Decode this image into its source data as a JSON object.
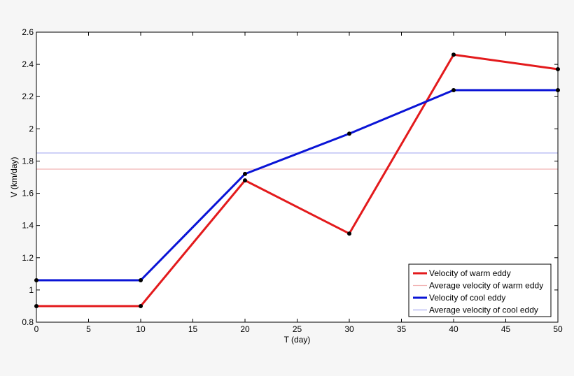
{
  "chart_data": {
    "type": "line",
    "xlabel": "T (day)",
    "ylabel": "V (km/day)",
    "xlim": [
      0,
      50
    ],
    "ylim": [
      0.8,
      2.6
    ],
    "xticks": [
      0,
      5,
      10,
      15,
      20,
      25,
      30,
      35,
      40,
      45,
      50
    ],
    "yticks": [
      0.8,
      1,
      1.2,
      1.4,
      1.6,
      1.8,
      2,
      2.2,
      2.4,
      2.6
    ],
    "ytick_labels": [
      "0.8",
      "1",
      "1.2",
      "1.4",
      "1.6",
      "1.8",
      "2",
      "2.2",
      "2.4",
      "2.6"
    ],
    "grid": false,
    "legend_position": "bottom-right",
    "series": [
      {
        "name": "Velocity of warm eddy",
        "color": "#e31a1c",
        "kind": "line",
        "markers": true,
        "x": [
          0,
          10,
          20,
          30,
          40,
          50
        ],
        "y": [
          0.9,
          0.9,
          1.68,
          1.35,
          2.46,
          2.37
        ]
      },
      {
        "name": "Average velocity of warm eddy",
        "color": "#f2b5b5",
        "kind": "hline",
        "y": 1.75
      },
      {
        "name": "Velocity of cool eddy",
        "color": "#0a14d6",
        "kind": "line",
        "markers": true,
        "x": [
          0,
          10,
          20,
          30,
          40,
          50
        ],
        "y": [
          1.06,
          1.06,
          1.72,
          1.97,
          2.24,
          2.24
        ]
      },
      {
        "name": "Average velocity of cool eddy",
        "color": "#a8acf0",
        "kind": "hline",
        "y": 1.85
      }
    ]
  }
}
